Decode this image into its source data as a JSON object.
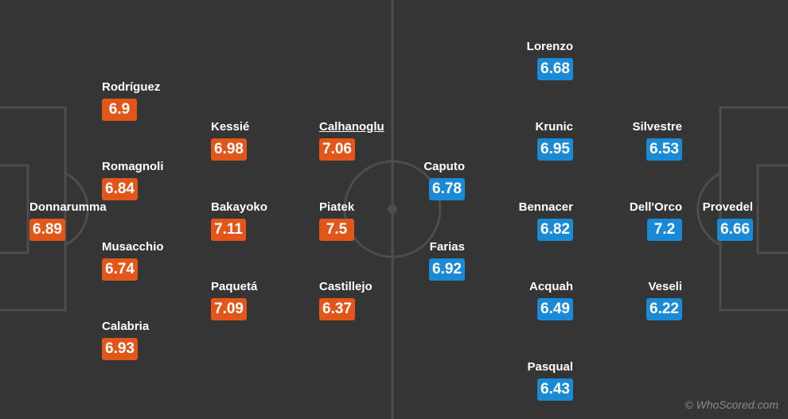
{
  "home": {
    "players": [
      {
        "name": "Rodríguez",
        "rating": "6.9"
      },
      {
        "name": "Romagnoli",
        "rating": "6.84"
      },
      {
        "name": "Donnarumma",
        "rating": "6.89"
      },
      {
        "name": "Musacchio",
        "rating": "6.74"
      },
      {
        "name": "Calabria",
        "rating": "6.93"
      },
      {
        "name": "Kessié",
        "rating": "6.98"
      },
      {
        "name": "Bakayoko",
        "rating": "7.11"
      },
      {
        "name": "Paquetá",
        "rating": "7.09"
      },
      {
        "name": "Calhanoglu",
        "rating": "7.06"
      },
      {
        "name": "Piatek",
        "rating": "7.5"
      },
      {
        "name": "Castillejo",
        "rating": "6.37"
      }
    ]
  },
  "away": {
    "players": [
      {
        "name": "Lorenzo",
        "rating": "6.68"
      },
      {
        "name": "Krunic",
        "rating": "6.95"
      },
      {
        "name": "Bennacer",
        "rating": "6.82"
      },
      {
        "name": "Acquah",
        "rating": "6.49"
      },
      {
        "name": "Pasqual",
        "rating": "6.43"
      },
      {
        "name": "Silvestre",
        "rating": "6.53"
      },
      {
        "name": "Dell'Orco",
        "rating": "7.2"
      },
      {
        "name": "Veseli",
        "rating": "6.22"
      },
      {
        "name": "Caputo",
        "rating": "6.78"
      },
      {
        "name": "Farias",
        "rating": "6.92"
      },
      {
        "name": "Provedel",
        "rating": "6.66"
      }
    ]
  },
  "watermark": "© WhoScored.com"
}
